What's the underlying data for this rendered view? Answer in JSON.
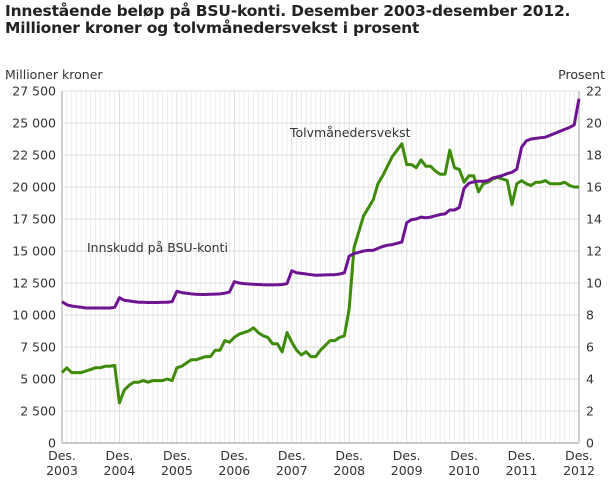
{
  "title": {
    "line1": "Innestående beløp på BSU-konti. Desember 2003-desember 2012.",
    "line2": "Millioner kroner og tolvmånedersvekst i prosent"
  },
  "colors": {
    "innskudd": "#6e1492",
    "vekst": "#3e8b0a",
    "grid": "#dddddd",
    "minor_grid": "#ececec"
  },
  "chart_data": {
    "type": "line",
    "title": "Innestående beløp på BSU-konti. Desember 2003-desember 2012. Millioner kroner og tolvmånedersvekst i prosent",
    "xlabel": "",
    "ylabel": "Millioner kroner",
    "y2label": "Prosent",
    "ylim": [
      0,
      27500
    ],
    "y2lim": [
      0,
      22
    ],
    "yticks": [
      "0",
      "2 500",
      "5 000",
      "7 500",
      "10 000",
      "12 500",
      "15 000",
      "17 500",
      "20 000",
      "22 500",
      "25 000",
      "27 500"
    ],
    "y2ticks": [
      "0",
      "2",
      "4",
      "6",
      "8",
      "10",
      "12",
      "14",
      "16",
      "18",
      "20",
      "22"
    ],
    "xticks": [
      {
        "l1": "Des.",
        "l2": "2003"
      },
      {
        "l1": "Des.",
        "l2": "2004"
      },
      {
        "l1": "Des.",
        "l2": "2005"
      },
      {
        "l1": "Des.",
        "l2": "2006"
      },
      {
        "l1": "Des.",
        "l2": "2007"
      },
      {
        "l1": "Des.",
        "l2": "2008"
      },
      {
        "l1": "Des.",
        "l2": "2009"
      },
      {
        "l1": "Des.",
        "l2": "2010"
      },
      {
        "l1": "Des.",
        "l2": "2011"
      },
      {
        "l1": "Des.",
        "l2": "2012"
      }
    ],
    "grid": true,
    "legend_position": "inline annotations",
    "x_start": "2003-12",
    "x_end": "2012-12",
    "series": [
      {
        "name": "Innskudd på BSU-konti",
        "axis": "left",
        "unit": "Millioner kroner",
        "points": [
          [
            0,
            11050
          ],
          [
            1,
            10800
          ],
          [
            2,
            10700
          ],
          [
            3,
            10650
          ],
          [
            4,
            10600
          ],
          [
            5,
            10550
          ],
          [
            6,
            10550
          ],
          [
            7,
            10550
          ],
          [
            8,
            10550
          ],
          [
            9,
            10550
          ],
          [
            10,
            10550
          ],
          [
            11,
            10600
          ],
          [
            12,
            11350
          ],
          [
            13,
            11150
          ],
          [
            14,
            11100
          ],
          [
            15,
            11050
          ],
          [
            16,
            11000
          ],
          [
            17,
            11000
          ],
          [
            18,
            10980
          ],
          [
            19,
            10980
          ],
          [
            20,
            10980
          ],
          [
            21,
            11000
          ],
          [
            22,
            11000
          ],
          [
            23,
            11050
          ],
          [
            24,
            11850
          ],
          [
            25,
            11750
          ],
          [
            26,
            11700
          ],
          [
            27,
            11650
          ],
          [
            28,
            11620
          ],
          [
            29,
            11600
          ],
          [
            30,
            11600
          ],
          [
            31,
            11620
          ],
          [
            32,
            11630
          ],
          [
            33,
            11650
          ],
          [
            34,
            11700
          ],
          [
            35,
            11800
          ],
          [
            36,
            12600
          ],
          [
            37,
            12500
          ],
          [
            38,
            12450
          ],
          [
            39,
            12420
          ],
          [
            40,
            12400
          ],
          [
            41,
            12380
          ],
          [
            42,
            12360
          ],
          [
            43,
            12350
          ],
          [
            44,
            12350
          ],
          [
            45,
            12360
          ],
          [
            46,
            12380
          ],
          [
            47,
            12450
          ],
          [
            48,
            13450
          ],
          [
            49,
            13300
          ],
          [
            50,
            13250
          ],
          [
            51,
            13200
          ],
          [
            52,
            13150
          ],
          [
            53,
            13100
          ],
          [
            54,
            13120
          ],
          [
            55,
            13130
          ],
          [
            56,
            13140
          ],
          [
            57,
            13150
          ],
          [
            58,
            13200
          ],
          [
            59,
            13300
          ],
          [
            60,
            14600
          ],
          [
            61,
            14800
          ],
          [
            62,
            14900
          ],
          [
            63,
            15000
          ],
          [
            64,
            15050
          ],
          [
            65,
            15050
          ],
          [
            66,
            15200
          ],
          [
            67,
            15350
          ],
          [
            68,
            15450
          ],
          [
            69,
            15500
          ],
          [
            70,
            15600
          ],
          [
            71,
            15700
          ],
          [
            72,
            17200
          ],
          [
            73,
            17450
          ],
          [
            74,
            17500
          ],
          [
            75,
            17650
          ],
          [
            76,
            17600
          ],
          [
            77,
            17650
          ],
          [
            78,
            17750
          ],
          [
            79,
            17850
          ],
          [
            80,
            17900
          ],
          [
            81,
            18200
          ],
          [
            82,
            18200
          ],
          [
            83,
            18400
          ],
          [
            84,
            19900
          ],
          [
            85,
            20300
          ],
          [
            86,
            20400
          ],
          [
            87,
            20450
          ],
          [
            88,
            20450
          ],
          [
            89,
            20500
          ],
          [
            90,
            20700
          ],
          [
            91,
            20800
          ],
          [
            92,
            20900
          ],
          [
            93,
            21050
          ],
          [
            94,
            21150
          ],
          [
            95,
            21400
          ],
          [
            96,
            23100
          ],
          [
            97,
            23600
          ],
          [
            98,
            23750
          ],
          [
            99,
            23800
          ],
          [
            100,
            23850
          ],
          [
            101,
            23900
          ],
          [
            102,
            24050
          ],
          [
            103,
            24200
          ],
          [
            104,
            24350
          ],
          [
            105,
            24500
          ],
          [
            106,
            24650
          ],
          [
            107,
            24850
          ],
          [
            108,
            26900
          ]
        ]
      },
      {
        "name": "Tolvmånedersvekst",
        "axis": "right",
        "unit": "Prosent",
        "points": [
          [
            0,
            4.4
          ],
          [
            1,
            4.7
          ],
          [
            2,
            4.4
          ],
          [
            3,
            4.4
          ],
          [
            4,
            4.4
          ],
          [
            5,
            4.5
          ],
          [
            6,
            4.6
          ],
          [
            7,
            4.7
          ],
          [
            8,
            4.7
          ],
          [
            9,
            4.8
          ],
          [
            10,
            4.8
          ],
          [
            11,
            4.85
          ],
          [
            12,
            2.5
          ],
          [
            13,
            3.3
          ],
          [
            14,
            3.6
          ],
          [
            15,
            3.8
          ],
          [
            16,
            3.8
          ],
          [
            17,
            3.9
          ],
          [
            18,
            3.8
          ],
          [
            19,
            3.9
          ],
          [
            20,
            3.9
          ],
          [
            21,
            3.9
          ],
          [
            22,
            4.0
          ],
          [
            23,
            3.9
          ],
          [
            24,
            4.7
          ],
          [
            25,
            4.8
          ],
          [
            26,
            5.0
          ],
          [
            27,
            5.2
          ],
          [
            28,
            5.2
          ],
          [
            29,
            5.3
          ],
          [
            30,
            5.4
          ],
          [
            31,
            5.4
          ],
          [
            32,
            5.8
          ],
          [
            33,
            5.8
          ],
          [
            34,
            6.4
          ],
          [
            35,
            6.3
          ],
          [
            36,
            6.6
          ],
          [
            37,
            6.8
          ],
          [
            38,
            6.9
          ],
          [
            39,
            7.0
          ],
          [
            40,
            7.2
          ],
          [
            41,
            6.9
          ],
          [
            42,
            6.7
          ],
          [
            43,
            6.6
          ],
          [
            44,
            6.2
          ],
          [
            45,
            6.2
          ],
          [
            46,
            5.7
          ],
          [
            47,
            6.9
          ],
          [
            48,
            6.3
          ],
          [
            49,
            5.8
          ],
          [
            50,
            5.5
          ],
          [
            51,
            5.7
          ],
          [
            52,
            5.4
          ],
          [
            53,
            5.4
          ],
          [
            54,
            5.8
          ],
          [
            55,
            6.1
          ],
          [
            56,
            6.4
          ],
          [
            57,
            6.4
          ],
          [
            58,
            6.6
          ],
          [
            59,
            6.7
          ],
          [
            60,
            8.4
          ],
          [
            61,
            12.2
          ],
          [
            62,
            13.2
          ],
          [
            63,
            14.2
          ],
          [
            64,
            14.7
          ],
          [
            65,
            15.2
          ],
          [
            66,
            16.2
          ],
          [
            67,
            16.7
          ],
          [
            68,
            17.3
          ],
          [
            69,
            17.9
          ],
          [
            70,
            18.3
          ],
          [
            71,
            18.7
          ],
          [
            72,
            17.4
          ],
          [
            73,
            17.4
          ],
          [
            74,
            17.2
          ],
          [
            75,
            17.7
          ],
          [
            76,
            17.3
          ],
          [
            77,
            17.3
          ],
          [
            78,
            17.0
          ],
          [
            79,
            16.8
          ],
          [
            80,
            16.8
          ],
          [
            81,
            18.3
          ],
          [
            82,
            17.2
          ],
          [
            83,
            17.1
          ],
          [
            84,
            16.3
          ],
          [
            85,
            16.7
          ],
          [
            86,
            16.7
          ],
          [
            87,
            15.7
          ],
          [
            88,
            16.2
          ],
          [
            89,
            16.3
          ],
          [
            90,
            16.5
          ],
          [
            91,
            16.6
          ],
          [
            92,
            16.5
          ],
          [
            93,
            16.4
          ],
          [
            94,
            14.9
          ],
          [
            95,
            16.2
          ],
          [
            96,
            16.4
          ],
          [
            97,
            16.2
          ],
          [
            98,
            16.1
          ],
          [
            99,
            16.3
          ],
          [
            100,
            16.3
          ],
          [
            101,
            16.4
          ],
          [
            102,
            16.2
          ],
          [
            103,
            16.2
          ],
          [
            104,
            16.2
          ],
          [
            105,
            16.3
          ],
          [
            106,
            16.1
          ],
          [
            107,
            16.0
          ],
          [
            108,
            16.0
          ]
        ]
      }
    ],
    "annotations": [
      {
        "text": "Innskudd på BSU-konti",
        "x": 87,
        "y": 252
      },
      {
        "text": "Tolvmånedersvekst",
        "x": 290,
        "y": 137
      }
    ]
  }
}
